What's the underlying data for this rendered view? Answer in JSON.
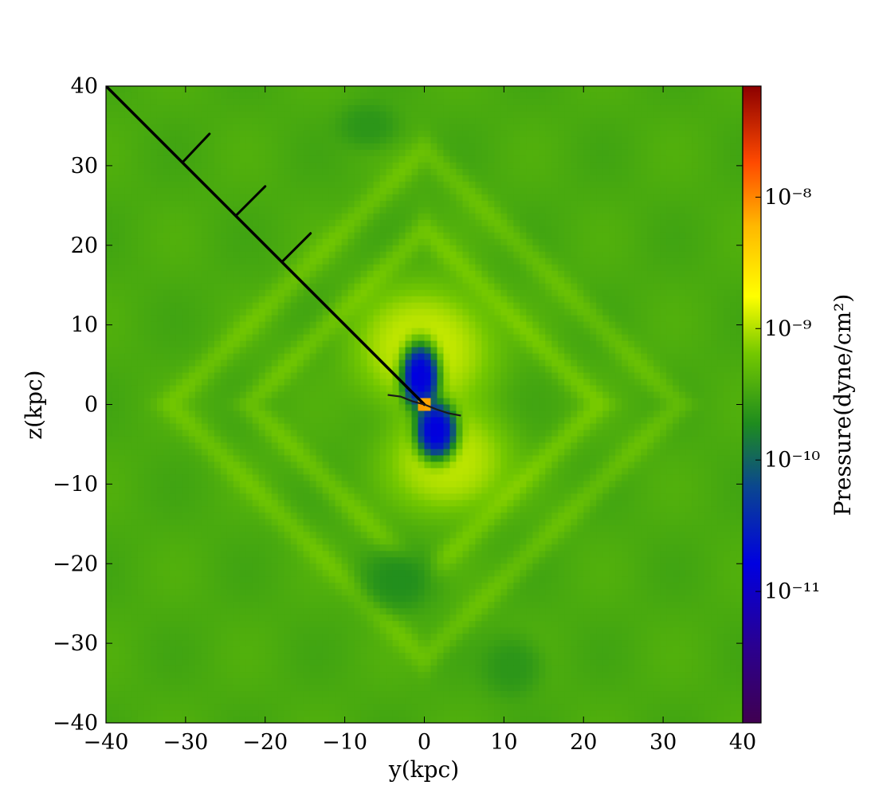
{
  "chart_data": {
    "type": "heatmap",
    "title": "",
    "xlabel": "y(kpc)",
    "ylabel": "z(kpc)",
    "xlim": [
      -40,
      40
    ],
    "ylim": [
      -40,
      40
    ],
    "x_ticks": [
      -40,
      -30,
      -20,
      -10,
      0,
      10,
      20,
      30,
      40
    ],
    "y_ticks": [
      -40,
      -30,
      -20,
      -10,
      0,
      10,
      20,
      30,
      40
    ],
    "x_tick_labels": [
      "−40",
      "−30",
      "−20",
      "−10",
      "0",
      "10",
      "20",
      "30",
      "40"
    ],
    "y_tick_labels": [
      "−40",
      "−30",
      "−20",
      "−10",
      "0",
      "10",
      "20",
      "30",
      "40"
    ],
    "grid": false,
    "colorbar": {
      "label": "Pressure(dyne/cm²)",
      "scale": "log",
      "vmin": 1e-12,
      "vmax": 7e-08,
      "ticks": [
        {
          "value": 1e-08,
          "label": "10⁻⁸"
        },
        {
          "value": 1e-09,
          "label": "10⁻⁹"
        },
        {
          "value": 1e-10,
          "label": "10⁻¹⁰"
        },
        {
          "value": 1e-11,
          "label": "10⁻¹¹"
        }
      ],
      "colormap_stops": [
        {
          "f": 0.0,
          "color": "#400050"
        },
        {
          "f": 0.12,
          "color": "#2a0090"
        },
        {
          "f": 0.25,
          "color": "#0000e0"
        },
        {
          "f": 0.37,
          "color": "#0a4690"
        },
        {
          "f": 0.47,
          "color": "#1e8c1e"
        },
        {
          "f": 0.58,
          "color": "#74c800"
        },
        {
          "f": 0.67,
          "color": "#ffff00"
        },
        {
          "f": 0.78,
          "color": "#ffb800"
        },
        {
          "f": 0.88,
          "color": "#ff4a00"
        },
        {
          "f": 1.0,
          "color": "#8c0000"
        }
      ]
    },
    "field": {
      "background_pressure": 3.5e-10,
      "features": [
        {
          "kind": "bubble",
          "name": "upper-yellow-shell",
          "center": [
            0,
            7
          ],
          "radius": [
            9,
            8
          ],
          "pressure": 1.2e-09
        },
        {
          "kind": "bubble",
          "name": "lower-yellow-shell",
          "center": [
            3,
            -7
          ],
          "radius": [
            8,
            7
          ],
          "pressure": 1.1e-09
        },
        {
          "kind": "bubble",
          "name": "upper-cavity",
          "center": [
            -0.5,
            3.5
          ],
          "radius": [
            2.4,
            4.2
          ],
          "pressure": 1.5e-11
        },
        {
          "kind": "bubble",
          "name": "lower-cavity",
          "center": [
            1.5,
            -3.3
          ],
          "radius": [
            2.6,
            3.6
          ],
          "pressure": 1.5e-11
        },
        {
          "kind": "bubble",
          "name": "core",
          "center": [
            0,
            0
          ],
          "radius": [
            0.8,
            0.8
          ],
          "pressure": 5e-08
        },
        {
          "kind": "bubble",
          "name": "low-pressure-blob-south",
          "center": [
            -3,
            -22
          ],
          "radius": [
            5,
            4
          ],
          "pressure": 2e-10
        },
        {
          "kind": "bubble",
          "name": "low-pressure-blob-north",
          "center": [
            -7,
            35
          ],
          "radius": [
            4,
            3
          ],
          "pressure": 2.3e-10
        },
        {
          "kind": "bubble",
          "name": "low-pressure-blob-se",
          "center": [
            11,
            -33
          ],
          "radius": [
            4,
            4
          ],
          "pressure": 2.3e-10
        }
      ],
      "diamond_ripples": [
        {
          "center": [
            0,
            0
          ],
          "radius": 22,
          "pressure": 6e-10
        },
        {
          "center": [
            0,
            0
          ],
          "radius": 32,
          "pressure": 5.5e-10
        }
      ]
    },
    "sightline": {
      "from": [
        -40,
        40
      ],
      "to": [
        0,
        0
      ],
      "ticks": [
        {
          "at": [
            -30.4,
            30.4
          ],
          "to": [
            -27,
            34
          ]
        },
        {
          "at": [
            -23.7,
            23.7
          ],
          "to": [
            -20,
            27.4
          ]
        },
        {
          "at": [
            -17.9,
            17.9
          ],
          "to": [
            -14.3,
            21.5
          ]
        }
      ]
    },
    "jet_wisps": [
      [
        [
          -4.6,
          1.2
        ],
        [
          -3,
          1.0
        ],
        [
          -1.5,
          0.4
        ],
        [
          0,
          0
        ]
      ],
      [
        [
          0,
          0
        ],
        [
          1.5,
          -0.6
        ],
        [
          3,
          -1.1
        ],
        [
          4.6,
          -1.4
        ]
      ]
    ]
  }
}
